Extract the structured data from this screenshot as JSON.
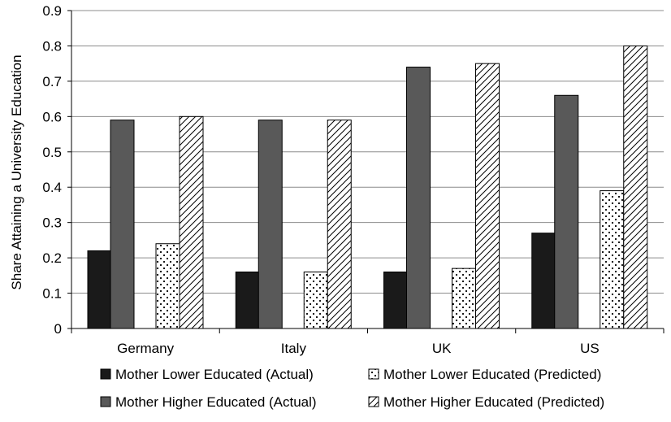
{
  "chart_data": {
    "type": "bar",
    "title": "",
    "xlabel": "",
    "ylabel": "Share Attaining a University Education",
    "ylim": [
      0,
      0.9
    ],
    "yticks": [
      "0",
      "0.1",
      "0.2",
      "0.3",
      "0.4",
      "0.5",
      "0.6",
      "0.7",
      "0.8",
      "0.9"
    ],
    "grid": true,
    "legend_position": "bottom",
    "categories": [
      "Germany",
      "Italy",
      "UK",
      "US"
    ],
    "series": [
      {
        "name": "Mother Lower Educated (Actual)",
        "values": [
          0.22,
          0.16,
          0.16,
          0.27
        ],
        "fill": "#1a1a1a",
        "pattern": "solid"
      },
      {
        "name": "Mother Higher Educated (Actual)",
        "values": [
          0.59,
          0.59,
          0.74,
          0.66
        ],
        "fill": "#595959",
        "pattern": "solid"
      },
      {
        "name": "Mother Lower Educated (Predicted)",
        "values": [
          0.24,
          0.16,
          0.17,
          0.39
        ],
        "fill": "#ffffff",
        "pattern": "dots"
      },
      {
        "name": "Mother Higher Educated (Predicted)",
        "values": [
          0.6,
          0.59,
          0.75,
          0.8
        ],
        "fill": "#ffffff",
        "pattern": "diagonal"
      }
    ]
  }
}
